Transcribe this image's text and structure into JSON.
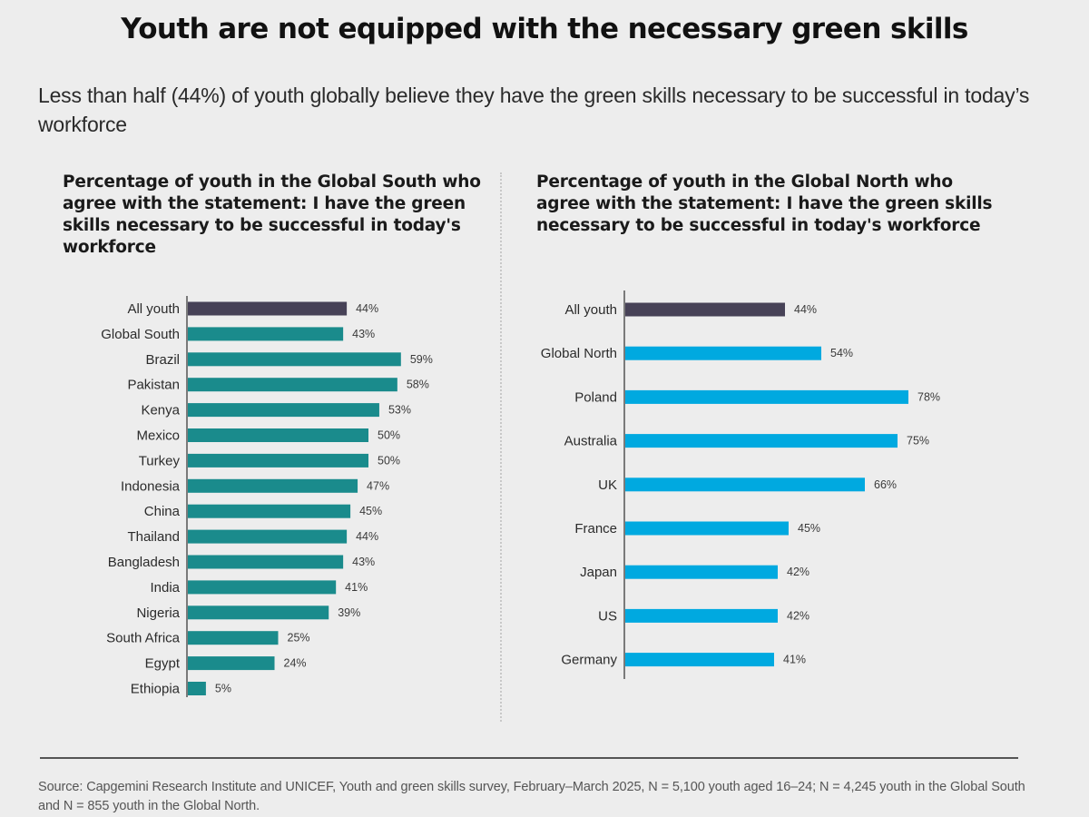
{
  "title": "Youth are not equipped with the necessary green skills",
  "subtitle": "Less than half (44%) of youth globally believe they have the green skills necessary to be successful in today’s workforce",
  "colors": {
    "all_youth": "#474257",
    "global_south": "#1a8b8c",
    "global_north": "#00a9e0",
    "background": "#ededed"
  },
  "chart_data": [
    {
      "type": "bar",
      "orientation": "horizontal",
      "title": "Percentage of youth in the Global South who agree with the statement: I have the green skills necessary to be successful in today's workforce",
      "xlabel": "",
      "ylabel": "",
      "xlim": [
        0,
        100
      ],
      "grid": false,
      "legend": "none",
      "value_suffix": "%",
      "categories": [
        "All youth",
        "Global South",
        "Brazil",
        "Pakistan",
        "Kenya",
        "Mexico",
        "Turkey",
        "Indonesia",
        "China",
        "Thailand",
        "Bangladesh",
        "India",
        "Nigeria",
        "South Africa",
        "Egypt",
        "Ethiopia"
      ],
      "values": [
        44,
        43,
        59,
        58,
        53,
        50,
        50,
        47,
        45,
        44,
        43,
        41,
        39,
        25,
        24,
        5
      ],
      "bar_colors": [
        "#474257",
        "#1a8b8c",
        "#1a8b8c",
        "#1a8b8c",
        "#1a8b8c",
        "#1a8b8c",
        "#1a8b8c",
        "#1a8b8c",
        "#1a8b8c",
        "#1a8b8c",
        "#1a8b8c",
        "#1a8b8c",
        "#1a8b8c",
        "#1a8b8c",
        "#1a8b8c",
        "#1a8b8c"
      ]
    },
    {
      "type": "bar",
      "orientation": "horizontal",
      "title": "Percentage of youth in the Global North who agree with the statement: I have the green skills necessary to be successful in today's workforce",
      "xlabel": "",
      "ylabel": "",
      "xlim": [
        0,
        100
      ],
      "grid": false,
      "legend": "none",
      "value_suffix": "%",
      "categories": [
        "All youth",
        "Global North",
        "Poland",
        "Australia",
        "UK",
        "France",
        "Japan",
        "US",
        "Germany"
      ],
      "values": [
        44,
        54,
        78,
        75,
        66,
        45,
        42,
        42,
        41
      ],
      "bar_colors": [
        "#474257",
        "#00a9e0",
        "#00a9e0",
        "#00a9e0",
        "#00a9e0",
        "#00a9e0",
        "#00a9e0",
        "#00a9e0",
        "#00a9e0"
      ]
    }
  ],
  "source": "Source: Capgemini Research Institute and UNICEF, Youth and green skills survey, February–March 2025, N = 5,100 youth aged 16–24; N = 4,245 youth in the Global South and N = 855 youth in the Global North."
}
